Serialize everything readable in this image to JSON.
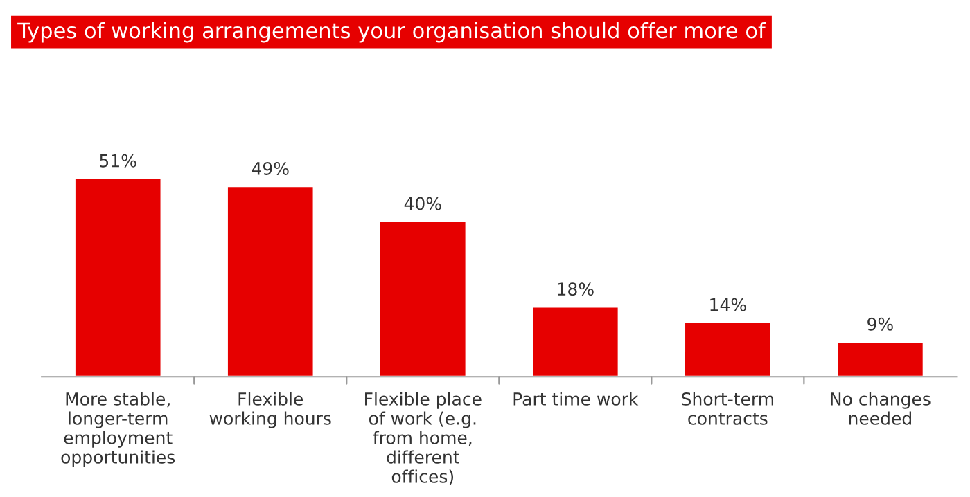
{
  "chart_data": {
    "type": "bar",
    "title": "Types of working arrangements your organisation should offer more of",
    "categories": [
      "More stable, longer-term employment opportunities",
      "Flexible working hours",
      "Flexible place of work (e.g. from home, different offices)",
      "Part time work",
      "Short-term contracts",
      "No changes needed"
    ],
    "values": [
      51,
      49,
      40,
      18,
      14,
      9
    ],
    "value_labels": [
      "51%",
      "49%",
      "40%",
      "18%",
      "14%",
      "9%"
    ],
    "color": "#e60000",
    "grid": false,
    "legend": false,
    "tick_labels": "x"
  }
}
